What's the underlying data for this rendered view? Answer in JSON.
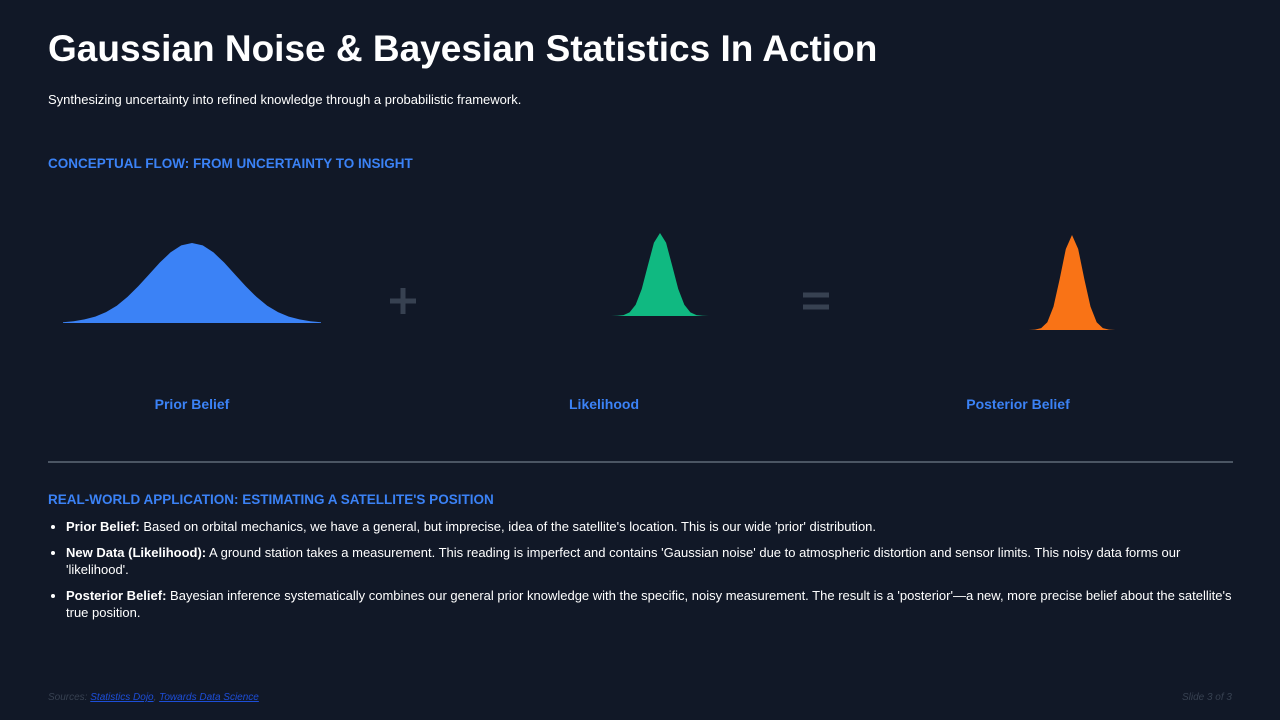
{
  "header": {
    "title": "Gaussian Noise & Bayesian Statistics In Action",
    "subtitle": "Synthesizing uncertainty into refined knowledge through a probabilistic framework."
  },
  "flow": {
    "heading": "CONCEPTUAL FLOW: FROM UNCERTAINTY TO INSIGHT"
  },
  "chart_data": [
    {
      "type": "area",
      "label": "Prior Belief",
      "color": "#3b82f6",
      "x": [
        -3,
        -2.75,
        -2.5,
        -2.25,
        -2,
        -1.75,
        -1.5,
        -1.25,
        -1,
        -0.75,
        -0.5,
        -0.25,
        0,
        0.25,
        0.5,
        0.75,
        1,
        1.25,
        1.5,
        1.75,
        2,
        2.25,
        2.5,
        2.75,
        3
      ],
      "values": [
        0.004,
        0.009,
        0.018,
        0.032,
        0.054,
        0.086,
        0.13,
        0.183,
        0.242,
        0.301,
        0.352,
        0.387,
        0.399,
        0.387,
        0.352,
        0.301,
        0.242,
        0.183,
        0.13,
        0.086,
        0.054,
        0.032,
        0.018,
        0.009,
        0.004
      ]
    },
    {
      "type": "area",
      "label": "Likelihood",
      "color": "#10b981",
      "x": [
        -3,
        -2.75,
        -2.5,
        -2.25,
        -2,
        -1.75,
        -1.5,
        -1.25,
        -1,
        -0.75,
        -0.5,
        -0.25,
        0,
        0.25,
        0.5,
        0.75,
        1,
        1.25,
        1.5,
        1.75,
        2,
        2.25,
        2.5,
        2.75,
        3
      ],
      "values": [
        0,
        0,
        0,
        0,
        0,
        0.002,
        0.009,
        0.035,
        0.108,
        0.259,
        0.484,
        0.704,
        0.798,
        0.704,
        0.484,
        0.259,
        0.108,
        0.035,
        0.009,
        0.002,
        0,
        0,
        0,
        0,
        0
      ]
    },
    {
      "type": "area",
      "label": "Posterior Belief",
      "color": "#f97316",
      "x": [
        -3,
        -2.75,
        -2.5,
        -2.25,
        -2,
        -1.75,
        -1.5,
        -1.25,
        -1,
        -0.75,
        -0.5,
        -0.25,
        0,
        0.25,
        0.5,
        0.75,
        1,
        1.25,
        1.5,
        1.75,
        2,
        2.25,
        2.5,
        2.75,
        3
      ],
      "values": [
        0,
        0,
        0,
        0,
        0,
        0,
        0.003,
        0.018,
        0.073,
        0.219,
        0.478,
        0.761,
        0.892,
        0.761,
        0.478,
        0.219,
        0.073,
        0.018,
        0.003,
        0,
        0,
        0,
        0,
        0,
        0
      ]
    }
  ],
  "application": {
    "heading": "REAL-WORLD APPLICATION: ESTIMATING A SATELLITE'S POSITION",
    "bullets": [
      {
        "label": "Prior Belief:",
        "text": "Based on orbital mechanics, we have a general, but imprecise, idea of the satellite's location. This is our wide 'prior' distribution."
      },
      {
        "label": "New Data (Likelihood):",
        "text": "A ground station takes a measurement. This reading is imperfect and contains 'Gaussian noise' due to atmospheric distortion and sensor limits. This noisy data forms our 'likelihood'."
      },
      {
        "label": "Posterior Belief:",
        "text": "Bayesian inference systematically combines our general prior knowledge with the specific, noisy measurement. The result is a 'posterior'—a new, more precise belief about the satellite's true position."
      }
    ]
  },
  "footer": {
    "sources_label": "Sources:",
    "links": [
      "Statistics Dojo",
      "Towards Data Science"
    ],
    "slide": "Slide 3 of 3"
  }
}
